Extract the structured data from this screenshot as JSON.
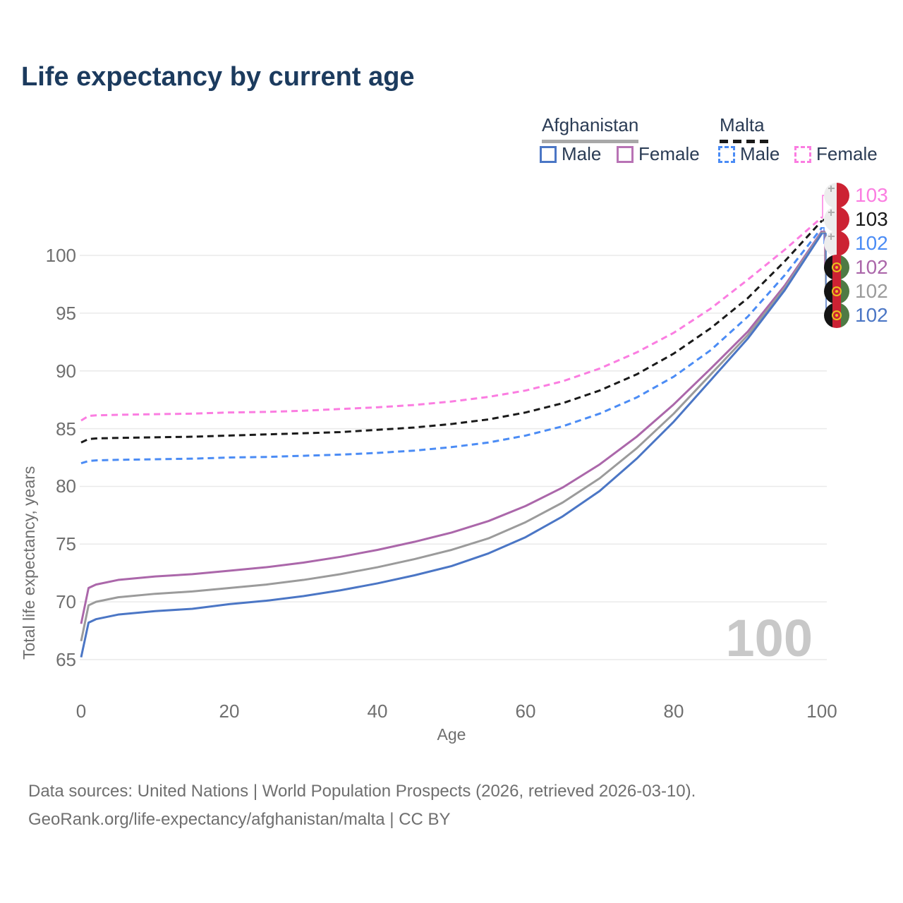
{
  "header": {
    "title": "Life expectancy by current age"
  },
  "legend": {
    "groups": [
      {
        "label": "Afghanistan",
        "line_style": "solid",
        "underline_color": "#a8a8a8",
        "items": [
          {
            "label": "Male",
            "color": "#4b76c5"
          },
          {
            "label": "Female",
            "color": "#b873b5"
          }
        ]
      },
      {
        "label": "Malta",
        "line_style": "dashed",
        "underline_color": "#1a1a1a",
        "items": [
          {
            "label": "Male",
            "color": "#4b8cf5"
          },
          {
            "label": "Female",
            "color": "#fb7de1"
          }
        ]
      }
    ]
  },
  "chart_data": {
    "type": "line",
    "title": "Life expectancy by current age",
    "xlabel": "Age",
    "ylabel": "Total life expectancy, years",
    "x_ticks": [
      0,
      20,
      40,
      60,
      80,
      100
    ],
    "y_ticks": [
      65,
      70,
      75,
      80,
      85,
      90,
      95,
      100
    ],
    "xlim": [
      0,
      100
    ],
    "ylim": [
      64,
      104.5
    ],
    "grid": "horizontal",
    "legend_position": "top-right",
    "watermark": "100",
    "ages": [
      0,
      1,
      2,
      5,
      10,
      15,
      20,
      25,
      30,
      35,
      40,
      45,
      50,
      55,
      60,
      65,
      70,
      75,
      80,
      85,
      90,
      95,
      100
    ],
    "series": [
      {
        "name": "Malta Female",
        "country": "malta",
        "sex": "Female",
        "color": "#fb7de1",
        "dashed": true,
        "end_label": "103",
        "values": [
          85.7,
          86.1,
          86.15,
          86.2,
          86.25,
          86.3,
          86.4,
          86.45,
          86.55,
          86.7,
          86.85,
          87.05,
          87.35,
          87.75,
          88.3,
          89.1,
          90.2,
          91.6,
          93.3,
          95.4,
          97.9,
          100.5,
          103.3
        ]
      },
      {
        "name": "Malta",
        "country": "malta",
        "sex": "Both",
        "color": "#1a1a1a",
        "dashed": true,
        "end_label": "103",
        "values": [
          83.8,
          84.1,
          84.15,
          84.2,
          84.25,
          84.3,
          84.4,
          84.5,
          84.6,
          84.7,
          84.9,
          85.1,
          85.4,
          85.8,
          86.4,
          87.2,
          88.3,
          89.7,
          91.5,
          93.7,
          96.3,
          99.5,
          103.0
        ]
      },
      {
        "name": "Malta Male",
        "country": "malta",
        "sex": "Male",
        "color": "#4b8cf5",
        "dashed": true,
        "end_label": "102",
        "values": [
          82.0,
          82.2,
          82.25,
          82.3,
          82.35,
          82.4,
          82.5,
          82.55,
          82.65,
          82.75,
          82.9,
          83.1,
          83.4,
          83.8,
          84.4,
          85.2,
          86.3,
          87.7,
          89.5,
          91.8,
          94.7,
          98.3,
          102.4
        ]
      },
      {
        "name": "Afghanistan Female",
        "country": "afghanistan",
        "sex": "Female",
        "color": "#ab67aa",
        "dashed": false,
        "end_label": "102",
        "values": [
          68.1,
          71.2,
          71.5,
          71.9,
          72.2,
          72.4,
          72.7,
          73.0,
          73.4,
          73.9,
          74.5,
          75.2,
          76.0,
          77.0,
          78.3,
          79.9,
          81.9,
          84.3,
          87.1,
          90.2,
          93.4,
          97.4,
          102.1
        ]
      },
      {
        "name": "Afghanistan",
        "country": "afghanistan",
        "sex": "Both",
        "color": "#9b9b9b",
        "dashed": false,
        "end_label": "102",
        "values": [
          66.6,
          69.7,
          70.0,
          70.4,
          70.7,
          70.9,
          71.2,
          71.5,
          71.9,
          72.4,
          73.0,
          73.7,
          74.5,
          75.5,
          76.9,
          78.6,
          80.7,
          83.3,
          86.3,
          89.7,
          93.1,
          97.2,
          102.0
        ]
      },
      {
        "name": "Afghanistan Male",
        "country": "afghanistan",
        "sex": "Male",
        "color": "#4b76c5",
        "dashed": false,
        "end_label": "102",
        "values": [
          65.2,
          68.2,
          68.5,
          68.9,
          69.2,
          69.4,
          69.8,
          70.1,
          70.5,
          71.0,
          71.6,
          72.3,
          73.1,
          74.2,
          75.6,
          77.4,
          79.6,
          82.4,
          85.6,
          89.2,
          92.8,
          97.0,
          101.9
        ]
      }
    ]
  },
  "footer": {
    "line1": "Data sources: United Nations | World Population Prospects (2026, retrieved 2026-03-10).",
    "line2": "GeoRank.org/life-expectancy/afghanistan/malta | CC BY"
  }
}
